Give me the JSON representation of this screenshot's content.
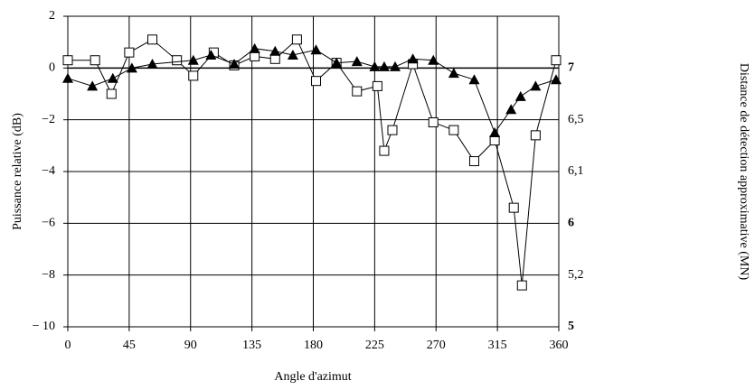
{
  "chart_data": {
    "type": "line",
    "xlabel": "Angle d'azimut",
    "ylabel": "Puissance relative (dB)",
    "y2label": "Distance de détection approximative (MN)",
    "xlim": [
      0,
      360
    ],
    "xticks": [
      0,
      45,
      90,
      135,
      180,
      225,
      270,
      315,
      360
    ],
    "ylim": [
      -10,
      2
    ],
    "yticks": [
      {
        "value": -10,
        "label": "− 10"
      },
      {
        "value": -8,
        "label": "−8"
      },
      {
        "value": -6,
        "label": "−6"
      },
      {
        "value": -4,
        "label": "−4"
      },
      {
        "value": -2,
        "label": "−2"
      },
      0,
      2
    ],
    "y2_tick_labels": [
      "5",
      "5,2",
      "6",
      "6,1",
      "6,5",
      "7",
      null
    ],
    "grid": true,
    "series": [
      {
        "marker": "square",
        "color": "#000000",
        "x": [
          0,
          20,
          32,
          45,
          62,
          80,
          92,
          107,
          122,
          137,
          152,
          168,
          182,
          197,
          212,
          227,
          232,
          238,
          253,
          268,
          283,
          298,
          313,
          327,
          333,
          343,
          358
        ],
        "values": [
          0.3,
          0.3,
          -1.0,
          0.6,
          1.1,
          0.3,
          -0.3,
          0.6,
          0.1,
          0.45,
          0.35,
          1.1,
          -0.5,
          0.2,
          -0.9,
          -0.7,
          -3.2,
          -2.4,
          0.15,
          -2.1,
          -2.4,
          -3.6,
          -2.8,
          -5.4,
          -8.4,
          -2.6,
          0.3
        ]
      },
      {
        "marker": "triangle",
        "color": "#000000",
        "x": [
          0,
          18,
          33,
          47,
          62,
          92,
          105,
          122,
          137,
          152,
          165,
          182,
          197,
          212,
          225,
          232,
          240,
          253,
          268,
          283,
          298,
          313,
          325,
          332,
          343,
          358
        ],
        "values": [
          -0.4,
          -0.7,
          -0.4,
          0.0,
          0.15,
          0.3,
          0.5,
          0.15,
          0.75,
          0.65,
          0.5,
          0.7,
          0.2,
          0.25,
          0.05,
          0.05,
          0.05,
          0.35,
          0.3,
          -0.2,
          -0.45,
          -2.5,
          -1.6,
          -1.1,
          -0.7,
          -0.45
        ]
      }
    ]
  }
}
